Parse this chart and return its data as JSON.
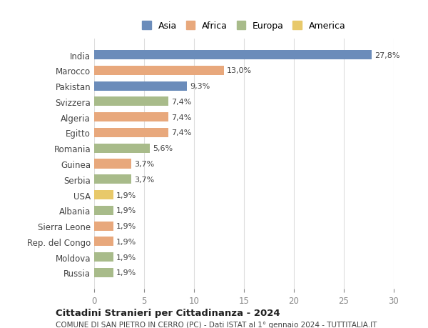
{
  "categories": [
    "India",
    "Marocco",
    "Pakistan",
    "Svizzera",
    "Algeria",
    "Egitto",
    "Romania",
    "Guinea",
    "Serbia",
    "USA",
    "Albania",
    "Sierra Leone",
    "Rep. del Congo",
    "Moldova",
    "Russia"
  ],
  "values": [
    27.8,
    13.0,
    9.3,
    7.4,
    7.4,
    7.4,
    5.6,
    3.7,
    3.7,
    1.9,
    1.9,
    1.9,
    1.9,
    1.9,
    1.9
  ],
  "labels": [
    "27,8%",
    "13,0%",
    "9,3%",
    "7,4%",
    "7,4%",
    "7,4%",
    "5,6%",
    "3,7%",
    "3,7%",
    "1,9%",
    "1,9%",
    "1,9%",
    "1,9%",
    "1,9%",
    "1,9%"
  ],
  "continents": [
    "Asia",
    "Africa",
    "Asia",
    "Europa",
    "Africa",
    "Africa",
    "Europa",
    "Africa",
    "Europa",
    "America",
    "Europa",
    "Africa",
    "Africa",
    "Europa",
    "Europa"
  ],
  "colors": {
    "Asia": "#6b8cba",
    "Africa": "#e8a87c",
    "Europa": "#a8bb8a",
    "America": "#e8c96a"
  },
  "legend_order": [
    "Asia",
    "Africa",
    "Europa",
    "America"
  ],
  "xlim": [
    0,
    30
  ],
  "xticks": [
    0,
    5,
    10,
    15,
    20,
    25,
    30
  ],
  "title1": "Cittadini Stranieri per Cittadinanza - 2024",
  "title2": "COMUNE DI SAN PIETRO IN CERRO (PC) - Dati ISTAT al 1° gennaio 2024 - TUTTITALIA.IT",
  "bg_color": "#ffffff",
  "grid_color": "#dddddd",
  "bar_height": 0.6
}
